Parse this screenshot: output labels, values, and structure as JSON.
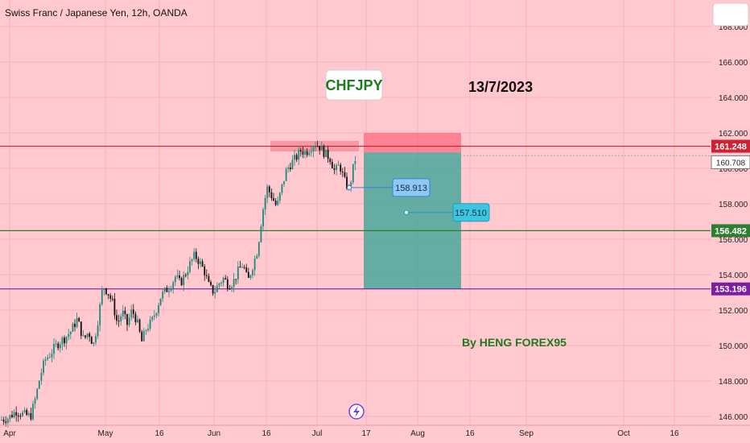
{
  "header": {
    "title": "Swiss Franc / Japanese Yen, 12h, OANDA"
  },
  "colors": {
    "background": "#ffc9cf",
    "up_candle": "#1a8a7a",
    "down_candle": "#111111",
    "resistance_line": "#cc2233",
    "support_line": "#2e7d32",
    "low_line": "#7b1fa2",
    "stop_zone": "#ff6b7f",
    "target_zone": "#4aa79a",
    "callout_blue": "#8ec8f5",
    "callout_cyan": "#3cc6e0"
  },
  "chart_data": {
    "type": "candlestick",
    "title": "Swiss Franc / Japanese Yen, 12h, OANDA",
    "y_axis": {
      "min": 145.5,
      "max": 169.5,
      "ticks": [
        "146.000",
        "148.000",
        "150.000",
        "152.000",
        "154.000",
        "156.000",
        "158.000",
        "160.000",
        "162.000",
        "164.000",
        "166.000",
        "168.000"
      ],
      "position": "right"
    },
    "x_axis": {
      "ticks": [
        "Apr",
        "May",
        "16",
        "Jun",
        "16",
        "Jul",
        "17",
        "Aug",
        "16",
        "Sep",
        "Oct",
        "16"
      ]
    },
    "horizontal_lines": [
      {
        "value": 161.248,
        "label": "161.248",
        "color": "#cc2233"
      },
      {
        "value": 156.482,
        "label": "156.482",
        "color": "#2e7d32"
      },
      {
        "value": 153.196,
        "label": "153.196",
        "color": "#7b1fa2"
      }
    ],
    "current_price": {
      "value": 160.708,
      "label": "160.708"
    },
    "resistance_zone": {
      "low": 160.95,
      "high": 161.55
    },
    "trade_setup": {
      "stop_top": 162.0,
      "entry": 160.9,
      "target": 153.2
    },
    "callouts": [
      {
        "value": 158.913,
        "label": "158.913"
      },
      {
        "value": 157.51,
        "label": "157.510"
      }
    ],
    "path_points": [
      [
        0,
        145.8
      ],
      [
        10,
        145.9
      ],
      [
        20,
        146.3
      ],
      [
        30,
        146.1
      ],
      [
        38,
        146.0
      ],
      [
        44,
        147.0
      ],
      [
        50,
        148.3
      ],
      [
        56,
        149.2
      ],
      [
        62,
        149.5
      ],
      [
        68,
        149.9
      ],
      [
        74,
        150.2
      ],
      [
        80,
        150.4
      ],
      [
        88,
        150.8
      ],
      [
        96,
        151.5
      ],
      [
        104,
        150.3
      ],
      [
        110,
        150.8
      ],
      [
        116,
        150.0
      ],
      [
        122,
        151.5
      ],
      [
        128,
        153.4
      ],
      [
        134,
        153.0
      ],
      [
        140,
        152.4
      ],
      [
        146,
        151.2
      ],
      [
        152,
        151.9
      ],
      [
        158,
        151.2
      ],
      [
        164,
        152.0
      ],
      [
        170,
        151.4
      ],
      [
        176,
        150.2
      ],
      [
        182,
        151.0
      ],
      [
        188,
        151.3
      ],
      [
        194,
        152.0
      ],
      [
        200,
        152.8
      ],
      [
        206,
        153.1
      ],
      [
        212,
        153.4
      ],
      [
        218,
        153.9
      ],
      [
        224,
        153.5
      ],
      [
        230,
        154.0
      ],
      [
        236,
        154.6
      ],
      [
        242,
        155.1
      ],
      [
        248,
        154.7
      ],
      [
        254,
        154.2
      ],
      [
        260,
        153.3
      ],
      [
        266,
        153.0
      ],
      [
        272,
        153.5
      ],
      [
        278,
        153.8
      ],
      [
        284,
        153.4
      ],
      [
        290,
        153.6
      ],
      [
        296,
        154.2
      ],
      [
        302,
        154.6
      ],
      [
        308,
        153.6
      ],
      [
        314,
        154.5
      ],
      [
        320,
        155.4
      ],
      [
        326,
        157.5
      ],
      [
        332,
        158.9
      ],
      [
        338,
        158.4
      ],
      [
        344,
        157.8
      ],
      [
        350,
        158.9
      ],
      [
        356,
        159.9
      ],
      [
        362,
        160.3
      ],
      [
        368,
        160.6
      ],
      [
        374,
        161.0
      ],
      [
        380,
        160.9
      ],
      [
        386,
        161.2
      ],
      [
        392,
        161.4
      ],
      [
        398,
        161.2
      ],
      [
        404,
        160.8
      ],
      [
        410,
        160.6
      ],
      [
        416,
        159.8
      ],
      [
        422,
        160.2
      ],
      [
        428,
        159.3
      ],
      [
        434,
        158.8
      ],
      [
        440,
        160.3
      ],
      [
        444,
        160.9
      ]
    ],
    "annotations": {
      "symbol": "CHFJPY",
      "date": "13/7/2023",
      "author": "By HENG FOREX95"
    }
  }
}
